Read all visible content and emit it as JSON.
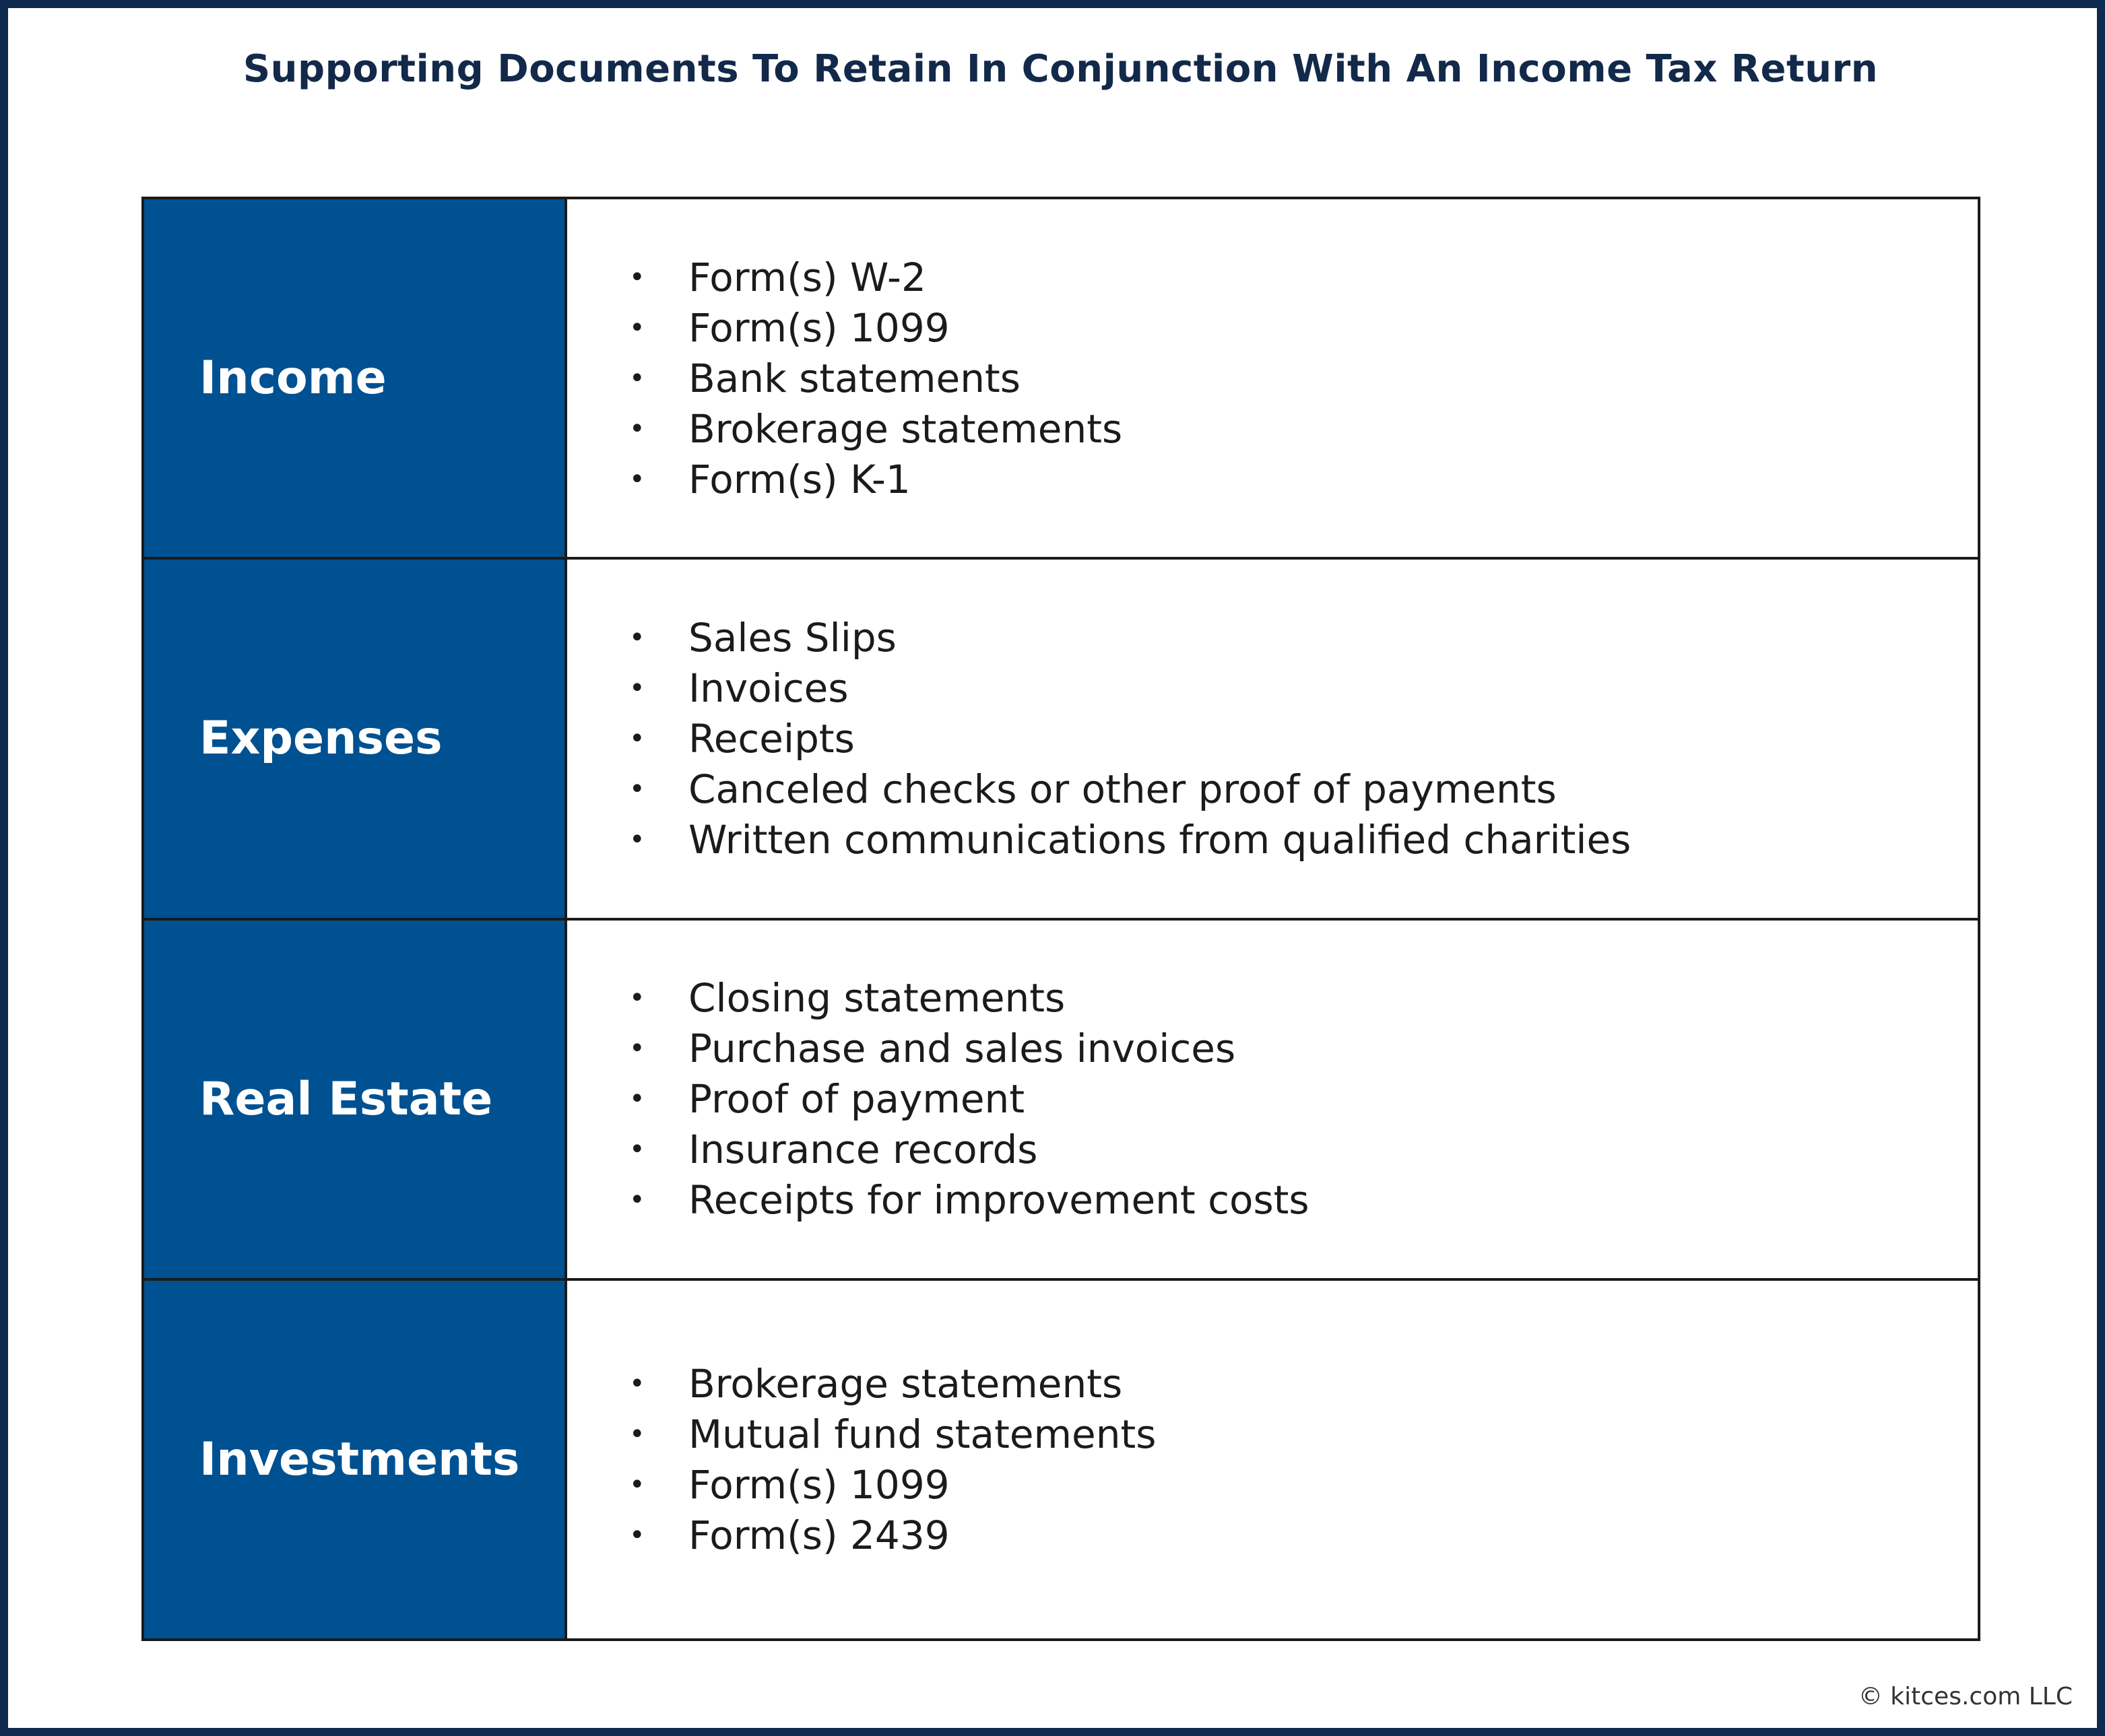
{
  "title": "Supporting Documents To Retain In Conjunction With An Income Tax Return",
  "footer": "© kitces.com LLC",
  "colors": {
    "border": "#0f2a4f",
    "title": "#12294a",
    "category_fill": "#005191",
    "category_text": "#ffffff",
    "grid_line": "#1a1a1a",
    "body_text": "#1b1b1b"
  },
  "bullet_glyph": "•",
  "rows": [
    {
      "category": "Income",
      "items": [
        "Form(s) W-2",
        "Form(s) 1099",
        "Bank statements",
        "Brokerage statements",
        "Form(s) K-1"
      ]
    },
    {
      "category": "Expenses",
      "items": [
        "Sales Slips",
        "Invoices",
        "Receipts",
        "Canceled checks or other proof of payments",
        "Written communications from qualified charities"
      ]
    },
    {
      "category": "Real Estate",
      "items": [
        "Closing statements",
        "Purchase and sales invoices",
        "Proof of payment",
        "Insurance records",
        "Receipts for improvement costs"
      ]
    },
    {
      "category": "Investments",
      "items": [
        "Brokerage statements",
        "Mutual fund statements",
        "Form(s) 1099",
        "Form(s) 2439"
      ]
    }
  ]
}
